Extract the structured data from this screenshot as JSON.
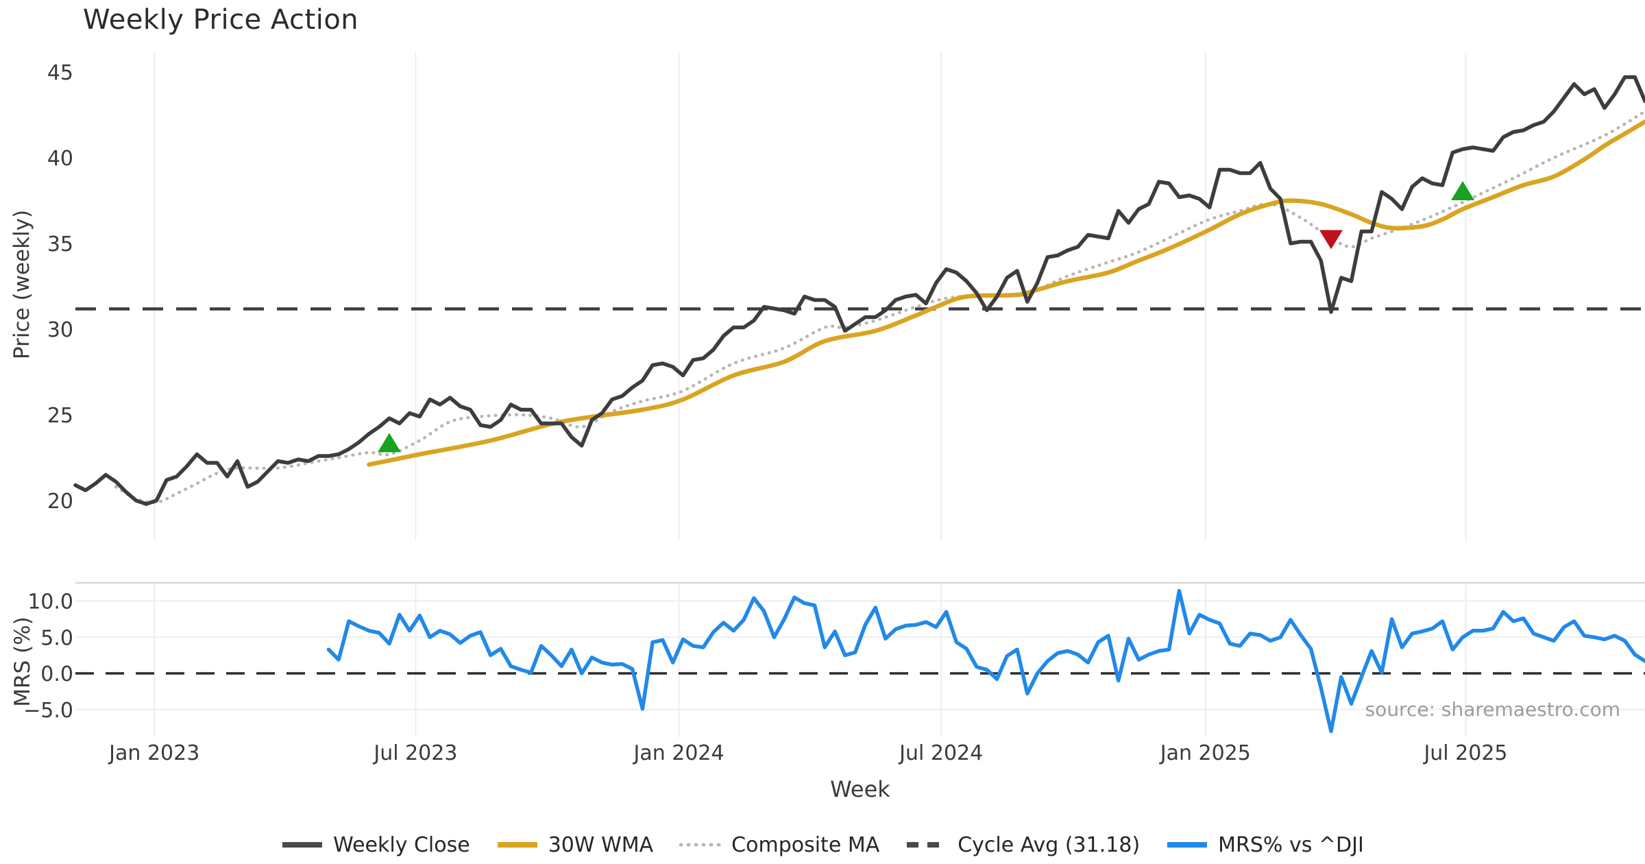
{
  "title": "Weekly Price Action",
  "source_note": "source: sharemaestro.com",
  "colors": {
    "weekly_close": "#3d3d3d",
    "wma_30w": "#d9a422",
    "composite_ma": "#b6b6b6",
    "cycle_avg": "#3d3d3d",
    "mrs_line": "#2289e8",
    "zero_line": "#2b2b2b",
    "buy_marker": "#17a21f",
    "sell_marker": "#c0111a",
    "gridline": "#ebedf3",
    "panel_spine": "#d6d6db",
    "tick_text": "#3a3a3a"
  },
  "legend": [
    {
      "id": "weekly-close",
      "label": "Weekly Close",
      "style": "solid",
      "color": "#4a4a4a"
    },
    {
      "id": "wma-30w",
      "label": "30W WMA",
      "style": "solid",
      "color": "#d9a422"
    },
    {
      "id": "composite-ma",
      "label": "Composite MA",
      "style": "dotted",
      "color": "#b6b6b6"
    },
    {
      "id": "cycle-avg",
      "label": "Cycle Avg (31.18)",
      "style": "dashed",
      "color": "#4a4a4a"
    },
    {
      "id": "mrs-vs-dji",
      "label": "MRS% vs ^DJI",
      "style": "solid",
      "color": "#2289e8"
    }
  ],
  "chart_data": {
    "type": "line",
    "title": "Weekly Price Action",
    "xlabel": "Week",
    "x_unit": "weeks",
    "x_range_weeks": [
      0,
      155
    ],
    "x_tick_labels": [
      "Jan 2023",
      "Jul 2023",
      "Jan 2024",
      "Jul 2024",
      "Jan 2025",
      "Jul 2025"
    ],
    "x_tick_weeks": [
      7.8,
      33.6,
      59.6,
      85.5,
      111.6,
      137.3
    ],
    "grid": "vertical-and-mrs-horizontal",
    "legend_position": "bottom-center",
    "panels": [
      {
        "name": "price",
        "ylabel": "Price (weekly)",
        "ylim": [
          17.9,
          46.3
        ],
        "yticks": [
          20,
          25,
          30,
          35,
          40,
          45
        ],
        "cycle_avg_value": 31.18,
        "series": [
          {
            "name": "Weekly Close",
            "type": "solid",
            "start_week": 0,
            "values": [
              20.9,
              20.6,
              21.0,
              21.5,
              21.1,
              20.5,
              20.0,
              19.8,
              20.0,
              21.2,
              21.4,
              22.0,
              22.7,
              22.2,
              22.2,
              21.4,
              22.3,
              20.8,
              21.1,
              21.7,
              22.3,
              22.2,
              22.4,
              22.3,
              22.6,
              22.6,
              22.7,
              23.0,
              23.4,
              23.9,
              24.3,
              24.8,
              24.5,
              25.1,
              24.9,
              25.9,
              25.6,
              26.0,
              25.5,
              25.3,
              24.4,
              24.3,
              24.7,
              25.6,
              25.3,
              25.3,
              24.5,
              24.5,
              24.5,
              23.7,
              23.2,
              24.7,
              25.1,
              25.9,
              26.1,
              26.6,
              27.0,
              27.9,
              28.0,
              27.8,
              27.3,
              28.2,
              28.3,
              28.8,
              29.6,
              30.1,
              30.1,
              30.5,
              31.3,
              31.2,
              31.1,
              30.9,
              31.9,
              31.7,
              31.7,
              31.3,
              29.9,
              30.3,
              30.7,
              30.7,
              31.1,
              31.7,
              31.9,
              32.0,
              31.5,
              32.7,
              33.5,
              33.3,
              32.8,
              32.1,
              31.1,
              31.9,
              33.0,
              33.4,
              31.6,
              32.7,
              34.2,
              34.3,
              34.6,
              34.8,
              35.5,
              35.4,
              35.3,
              36.9,
              36.2,
              37.0,
              37.3,
              38.6,
              38.5,
              37.7,
              37.8,
              37.6,
              37.1,
              39.3,
              39.3,
              39.1,
              39.1,
              39.7,
              38.2,
              37.6,
              35.0,
              35.1,
              35.1,
              34.0,
              31.0,
              33.0,
              32.8,
              35.7,
              35.7,
              38.0,
              37.6,
              37.0,
              38.3,
              38.8,
              38.5,
              38.4,
              40.3,
              40.5,
              40.6,
              40.5,
              40.4,
              41.2,
              41.5,
              41.6,
              41.9,
              42.1,
              42.7,
              43.5,
              44.3,
              43.7,
              44.0,
              42.9,
              43.7,
              44.7,
              44.7,
              43.3
            ]
          },
          {
            "name": "30W WMA",
            "type": "solid",
            "waypoints": [
              [
                29,
                22.1
              ],
              [
                34,
                22.7
              ],
              [
                41,
                23.5
              ],
              [
                48,
                24.6
              ],
              [
                56,
                25.3
              ],
              [
                60,
                25.9
              ],
              [
                65,
                27.3
              ],
              [
                70,
                28.1
              ],
              [
                74,
                29.3
              ],
              [
                79,
                29.9
              ],
              [
                83,
                30.8
              ],
              [
                85,
                31.3
              ],
              [
                88,
                31.9
              ],
              [
                93,
                32.0
              ],
              [
                95,
                32.3
              ],
              [
                98,
                32.8
              ],
              [
                102,
                33.3
              ],
              [
                105,
                34.0
              ],
              [
                108,
                34.7
              ],
              [
                112,
                35.8
              ],
              [
                115,
                36.7
              ],
              [
                118,
                37.3
              ],
              [
                120,
                37.5
              ],
              [
                123,
                37.3
              ],
              [
                126,
                36.7
              ],
              [
                128,
                36.2
              ],
              [
                130,
                35.9
              ],
              [
                133,
                36.0
              ],
              [
                135,
                36.4
              ],
              [
                137,
                37.0
              ],
              [
                140,
                37.7
              ],
              [
                143,
                38.4
              ],
              [
                146,
                38.9
              ],
              [
                149,
                39.9
              ],
              [
                151,
                40.7
              ],
              [
                153,
                41.4
              ],
              [
                155,
                42.1
              ]
            ]
          },
          {
            "name": "Composite MA",
            "type": "dotted",
            "waypoints": [
              [
                4,
                20.8
              ],
              [
                6,
                20.1
              ],
              [
                8,
                19.9
              ],
              [
                10,
                20.4
              ],
              [
                12,
                21.0
              ],
              [
                14,
                21.6
              ],
              [
                16,
                21.9
              ],
              [
                20,
                21.9
              ],
              [
                24,
                22.3
              ],
              [
                26,
                22.5
              ],
              [
                29,
                22.8
              ],
              [
                31,
                22.7
              ],
              [
                34,
                23.5
              ],
              [
                37,
                24.6
              ],
              [
                40,
                24.9
              ],
              [
                44,
                25.0
              ],
              [
                47,
                24.8
              ],
              [
                50,
                24.3
              ],
              [
                53,
                25.2
              ],
              [
                56,
                25.8
              ],
              [
                60,
                26.4
              ],
              [
                65,
                28.0
              ],
              [
                70,
                28.9
              ],
              [
                74,
                30.1
              ],
              [
                76,
                30.1
              ],
              [
                79,
                30.5
              ],
              [
                83,
                31.3
              ],
              [
                86,
                31.8
              ],
              [
                90,
                32.0
              ],
              [
                94,
                32.1
              ],
              [
                98,
                33.1
              ],
              [
                102,
                33.9
              ],
              [
                105,
                34.5
              ],
              [
                109,
                35.6
              ],
              [
                112,
                36.4
              ],
              [
                115,
                36.9
              ],
              [
                118,
                37.3
              ],
              [
                121,
                36.5
              ],
              [
                124,
                35.3
              ],
              [
                126,
                34.8
              ],
              [
                128,
                35.3
              ],
              [
                131,
                35.9
              ],
              [
                134,
                36.6
              ],
              [
                137,
                37.4
              ],
              [
                142,
                38.8
              ],
              [
                146,
                40.0
              ],
              [
                151,
                41.3
              ],
              [
                155,
                42.7
              ]
            ]
          },
          {
            "name": "Cycle Avg",
            "type": "dashed-horizontal",
            "value": 31.18
          }
        ],
        "markers": {
          "buy": {
            "shape": "triangle-up",
            "points": [
              [
                31,
                23.3
              ],
              [
                137,
                38.0
              ]
            ]
          },
          "sell": {
            "shape": "triangle-down",
            "points": [
              [
                124,
                35.3
              ]
            ]
          }
        }
      },
      {
        "name": "mrs",
        "ylabel": "MRS (%)",
        "ylim": [
          -8.8,
          12.5
        ],
        "yticks": [
          -5,
          0,
          5,
          10
        ],
        "ytick_labels": [
          "−5.0",
          "0.0",
          "5.0",
          "10.0"
        ],
        "series": [
          {
            "name": "MRS% vs ^DJI",
            "type": "solid",
            "start_week": 25,
            "values": [
              3.3,
              1.9,
              7.2,
              6.5,
              5.9,
              5.6,
              4.1,
              8.1,
              5.9,
              8.0,
              5.0,
              5.9,
              5.4,
              4.2,
              5.2,
              5.7,
              2.5,
              3.4,
              1.0,
              0.5,
              0.1,
              3.8,
              2.5,
              1.0,
              3.3,
              0.0,
              2.2,
              1.5,
              1.2,
              1.3,
              0.6,
              -4.9,
              4.3,
              4.6,
              1.5,
              4.7,
              3.8,
              3.6,
              5.7,
              7.0,
              5.9,
              7.4,
              10.4,
              8.6,
              5.0,
              7.5,
              10.5,
              9.7,
              9.4,
              3.6,
              5.8,
              2.5,
              2.9,
              6.7,
              9.1,
              4.8,
              6.1,
              6.6,
              6.7,
              7.1,
              6.4,
              8.5,
              4.3,
              3.4,
              0.9,
              0.5,
              -0.8,
              2.4,
              3.3,
              -2.8,
              0.0,
              1.7,
              2.8,
              3.1,
              2.6,
              1.5,
              4.3,
              5.2,
              -1.0,
              4.8,
              1.9,
              2.6,
              3.1,
              3.3,
              11.4,
              5.5,
              8.1,
              7.4,
              6.9,
              4.1,
              3.8,
              5.5,
              5.3,
              4.5,
              5.0,
              7.4,
              5.3,
              3.4,
              -2.0,
              -8.0,
              -0.5,
              -4.2,
              -0.5,
              3.1,
              0.1,
              7.5,
              3.6,
              5.5,
              5.8,
              6.2,
              7.2,
              3.3,
              5.0,
              5.9,
              5.9,
              6.2,
              8.5,
              7.2,
              7.6,
              5.5,
              5.0,
              4.5,
              6.4,
              7.2,
              5.2,
              5.0,
              4.7,
              5.2,
              4.5,
              2.6,
              1.7
            ]
          },
          {
            "name": "Zero line",
            "type": "dashed-horizontal",
            "value": 0.0
          }
        ]
      }
    ]
  }
}
